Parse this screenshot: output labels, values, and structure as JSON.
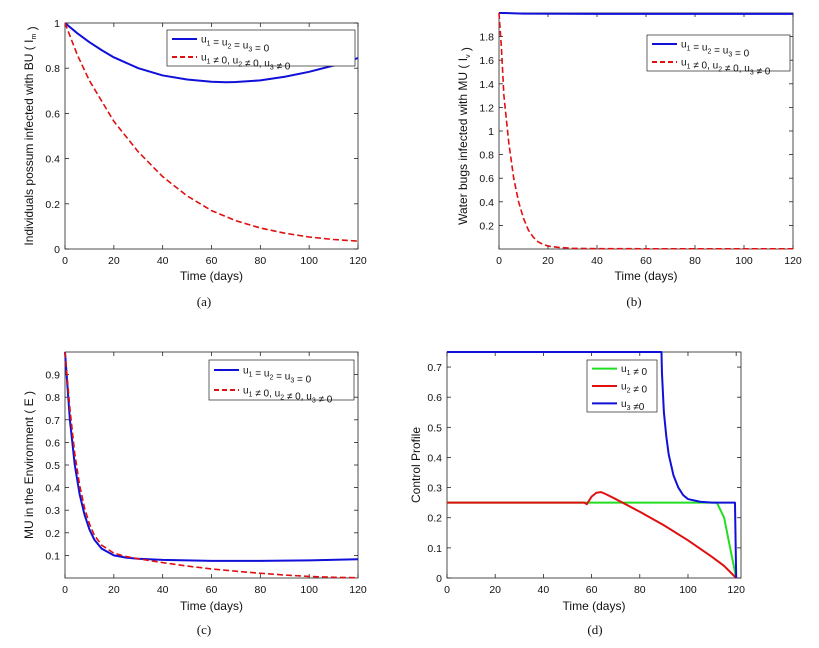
{
  "figure_captions": [
    "(a)",
    "(b)",
    "(c)",
    "(d)"
  ],
  "colors": {
    "blue": "#1010d8",
    "red": "#e01010",
    "green": "#22dd22",
    "axis": "#222222"
  },
  "chart_data": [
    {
      "type": "line",
      "caption": "(a)",
      "xlabel": "Time (days)",
      "ylabel": "Individuals possum infected with BU ( I_m )",
      "xlim": [
        0,
        120
      ],
      "ylim": [
        0,
        1
      ],
      "xticks": [
        0,
        20,
        40,
        60,
        80,
        100,
        120
      ],
      "yticks": [
        0,
        0.2,
        0.4,
        0.6,
        0.8,
        1
      ],
      "ytick_labels": [
        "0",
        "0.2",
        "0.4",
        "0.6",
        "0.8",
        "1"
      ],
      "legend": {
        "position": "top-right",
        "entries": [
          {
            "text": "u_1 = u_2 = u_3 = 0",
            "style": "solid",
            "color": "blue"
          },
          {
            "text": "u_1 ≠ 0, u_2 ≠ 0, u_3 ≠ 0",
            "style": "dashed",
            "color": "red"
          }
        ]
      },
      "series": [
        {
          "name": "u1 = u2 = u3 = 0",
          "color": "blue",
          "style": "solid",
          "x": [
            0,
            5,
            10,
            15,
            20,
            30,
            40,
            50,
            60,
            66,
            70,
            80,
            90,
            100,
            110,
            120
          ],
          "y": [
            1.0,
            0.955,
            0.915,
            0.88,
            0.848,
            0.8,
            0.768,
            0.75,
            0.74,
            0.738,
            0.739,
            0.746,
            0.762,
            0.784,
            0.812,
            0.845
          ]
        },
        {
          "name": "u1 ≠ 0, u2 ≠ 0, u3 ≠ 0",
          "color": "red",
          "style": "dashed",
          "x": [
            0,
            5,
            10,
            20,
            30,
            40,
            50,
            60,
            70,
            80,
            90,
            100,
            110,
            120
          ],
          "y": [
            1.0,
            0.86,
            0.745,
            0.565,
            0.43,
            0.32,
            0.235,
            0.17,
            0.125,
            0.093,
            0.07,
            0.053,
            0.042,
            0.035
          ]
        }
      ]
    },
    {
      "type": "line",
      "caption": "(b)",
      "xlabel": "Time (days)",
      "ylabel": "Water bugs infected with MU ( I_v )",
      "xlim": [
        0,
        120
      ],
      "ylim": [
        0,
        2
      ],
      "xticks": [
        0,
        20,
        40,
        60,
        80,
        100,
        120
      ],
      "yticks": [
        0.2,
        0.4,
        0.6,
        0.8,
        1,
        1.2,
        1.4,
        1.6,
        1.8
      ],
      "ytick_labels": [
        "0.2",
        "0.4",
        "0.6",
        "0.8",
        "1",
        "1.2",
        "1.4",
        "1.6",
        "1.8"
      ],
      "legend": {
        "position": "top-right",
        "entries": [
          {
            "text": "u_1 = u_2 = u_3 = 0",
            "style": "solid",
            "color": "blue"
          },
          {
            "text": "u_1 ≠ 0, u_2 ≠ 0, u_3 ≠ 0",
            "style": "dashed",
            "color": "red"
          }
        ]
      },
      "series": [
        {
          "name": "u1 = u2 = u3 = 0",
          "color": "blue",
          "style": "solid",
          "x": [
            0,
            2,
            10,
            40,
            80,
            120
          ],
          "y": [
            2.0,
            2.0,
            1.995,
            1.993,
            1.993,
            1.993
          ]
        },
        {
          "name": "u1 ≠ 0, u2 ≠ 0, u3 ≠ 0",
          "color": "red",
          "style": "dashed",
          "x": [
            0,
            1,
            2,
            4,
            6,
            8,
            10,
            12,
            14,
            16,
            18,
            20,
            25,
            30,
            40,
            60,
            80,
            100,
            120
          ],
          "y": [
            2.0,
            1.7,
            1.3,
            0.9,
            0.6,
            0.4,
            0.26,
            0.16,
            0.1,
            0.06,
            0.04,
            0.025,
            0.012,
            0.006,
            0.003,
            0.002,
            0.002,
            0.002,
            0.002
          ]
        }
      ]
    },
    {
      "type": "line",
      "caption": "(c)",
      "xlabel": "Time (days)",
      "ylabel": "MU in the Environment ( E )",
      "xlim": [
        0,
        120
      ],
      "ylim": [
        0,
        1
      ],
      "xticks": [
        0,
        20,
        40,
        60,
        80,
        100,
        120
      ],
      "yticks": [
        0.1,
        0.2,
        0.3,
        0.4,
        0.5,
        0.6,
        0.7,
        0.8,
        0.9
      ],
      "ytick_labels": [
        "0.1",
        "0.2",
        "0.3",
        "0.4",
        "0.5",
        "0.6",
        "0.7",
        "0.8",
        "0.9"
      ],
      "legend": {
        "position": "top-right",
        "entries": [
          {
            "text": "u_1 = u_2 = u_3 = 0",
            "style": "solid",
            "color": "blue"
          },
          {
            "text": "u_1 ≠ 0, u_2 ≠ 0, u_3 ≠ 0",
            "style": "dashed",
            "color": "red"
          }
        ]
      },
      "series": [
        {
          "name": "u1 = u2 = u3 = 0",
          "color": "blue",
          "style": "solid",
          "x": [
            0,
            2,
            4,
            6,
            8,
            10,
            12,
            15,
            20,
            25,
            30,
            40,
            60,
            80,
            100,
            120
          ],
          "y": [
            1.0,
            0.7,
            0.5,
            0.37,
            0.28,
            0.215,
            0.17,
            0.13,
            0.1,
            0.09,
            0.085,
            0.08,
            0.076,
            0.076,
            0.078,
            0.083
          ]
        },
        {
          "name": "u1 ≠ 0, u2 ≠ 0, u3 ≠ 0",
          "color": "red",
          "style": "dashed",
          "x": [
            0,
            2,
            4,
            6,
            8,
            10,
            12,
            15,
            20,
            25,
            30,
            40,
            50,
            60,
            70,
            80,
            90,
            100,
            110,
            120
          ],
          "y": [
            1.0,
            0.75,
            0.55,
            0.41,
            0.31,
            0.24,
            0.19,
            0.145,
            0.11,
            0.095,
            0.085,
            0.068,
            0.053,
            0.04,
            0.03,
            0.021,
            0.013,
            0.007,
            0.003,
            0.001
          ]
        }
      ]
    },
    {
      "type": "line",
      "caption": "(d)",
      "xlabel": "Time (days)",
      "ylabel": "Control Profile",
      "xlim": [
        0,
        122
      ],
      "ylim": [
        0,
        0.75
      ],
      "xticks": [
        0,
        20,
        40,
        60,
        80,
        100,
        120
      ],
      "yticks": [
        0,
        0.1,
        0.2,
        0.3,
        0.4,
        0.5,
        0.6,
        0.7
      ],
      "ytick_labels": [
        "0",
        "0.1",
        "0.2",
        "0.3",
        "0.4",
        "0.5",
        "0.6",
        "0.7"
      ],
      "legend": {
        "position": "top-right",
        "entries": [
          {
            "text": "u_1 ≠ 0",
            "style": "solid",
            "color": "green"
          },
          {
            "text": "u_2 ≠ 0",
            "style": "solid",
            "color": "red"
          },
          {
            "text": "u_3 ≠0",
            "style": "solid",
            "color": "blue"
          }
        ]
      },
      "series": [
        {
          "name": "u1 ≠ 0",
          "color": "green",
          "style": "solid",
          "x": [
            0,
            55,
            57,
            60,
            70,
            90,
            105,
            112,
            115,
            118,
            120
          ],
          "y": [
            0.25,
            0.25,
            0.25,
            0.25,
            0.25,
            0.25,
            0.25,
            0.25,
            0.2,
            0.08,
            0.0
          ]
        },
        {
          "name": "u2 ≠ 0",
          "color": "red",
          "style": "solid",
          "x": [
            0,
            57,
            58,
            60,
            62,
            64,
            66,
            70,
            80,
            90,
            100,
            110,
            115,
            120
          ],
          "y": [
            0.25,
            0.25,
            0.245,
            0.27,
            0.283,
            0.285,
            0.278,
            0.262,
            0.22,
            0.175,
            0.125,
            0.07,
            0.04,
            0.0
          ]
        },
        {
          "name": "u3 ≠0",
          "color": "blue",
          "style": "solid",
          "x": [
            0,
            89,
            89.2,
            90,
            91,
            92,
            94,
            96,
            98,
            100,
            105,
            110,
            119.5,
            120
          ],
          "y": [
            0.75,
            0.75,
            0.68,
            0.55,
            0.47,
            0.41,
            0.34,
            0.3,
            0.275,
            0.262,
            0.253,
            0.25,
            0.25,
            0.0
          ]
        }
      ]
    }
  ]
}
